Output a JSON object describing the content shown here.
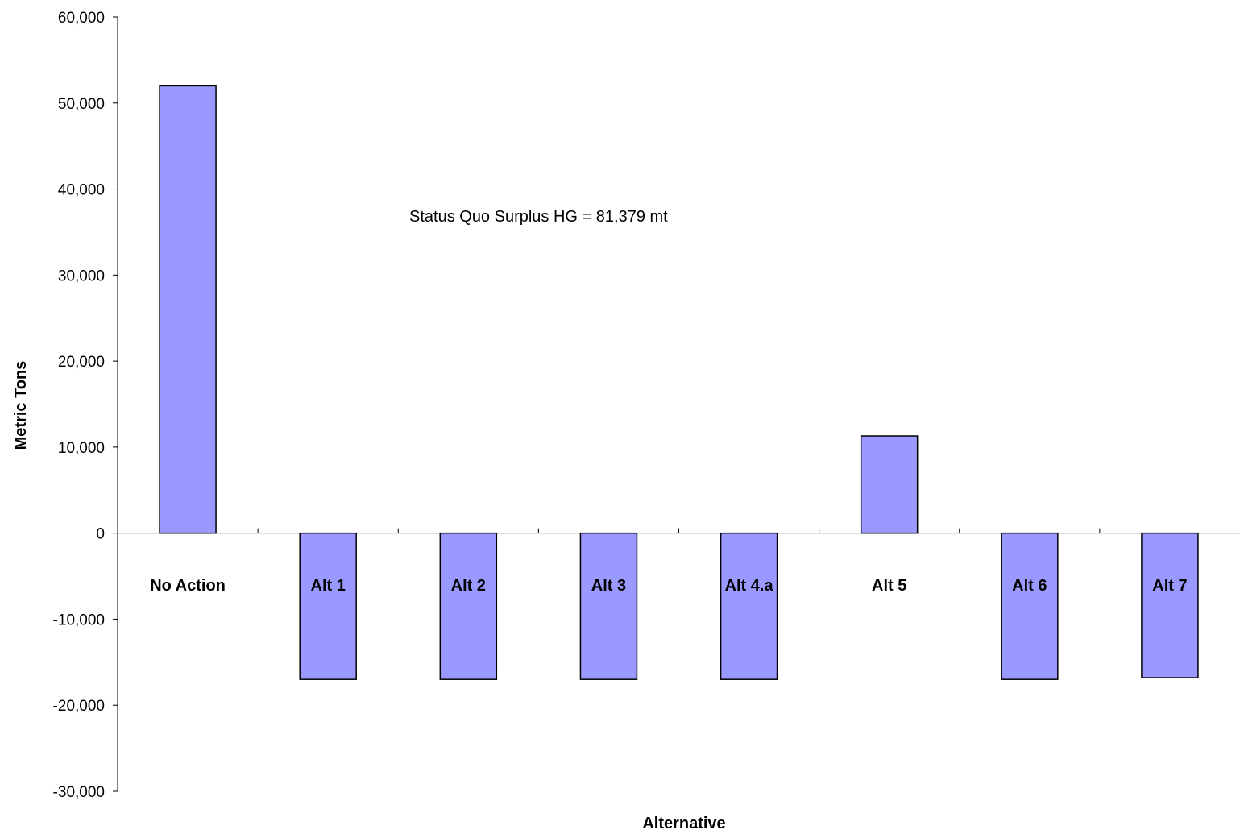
{
  "chart_data": {
    "type": "bar",
    "categories": [
      "No Action",
      "Alt 1",
      "Alt 2",
      "Alt 3",
      "Alt 4.a",
      "Alt 5",
      "Alt 6",
      "Alt 7"
    ],
    "values": [
      52000,
      -17000,
      -17000,
      -17000,
      -17000,
      11300,
      -17000,
      -16800
    ],
    "title": "",
    "xlabel": "Alternative",
    "ylabel": "Metric Tons",
    "ylim": [
      -30000,
      60000
    ],
    "yticks": [
      60000,
      50000,
      40000,
      30000,
      20000,
      10000,
      0,
      -10000,
      -20000,
      -30000
    ],
    "ytick_labels": [
      "60,000",
      "50,000",
      "40,000",
      "30,000",
      "20,000",
      "10,000",
      "0",
      "-10,000",
      "-20,000",
      "-30,000"
    ],
    "annotation": "Status Quo Surplus HG = 81,379 mt",
    "grid": false,
    "legend": "none",
    "colors": {
      "bar_fill": "#9999ff",
      "bar_stroke": "#000000"
    }
  }
}
